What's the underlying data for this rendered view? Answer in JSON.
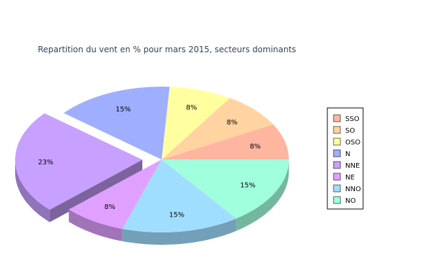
{
  "chart_data": {
    "type": "pie",
    "title": "Repartition du vent en % pour mars 2015, secteurs dominants",
    "categories": [
      "SSO",
      "SO",
      "OSO",
      "N",
      "NNE",
      "NE",
      "NNO",
      "NO"
    ],
    "values": [
      8,
      8,
      8,
      15,
      23,
      8,
      15,
      15
    ],
    "value_labels": [
      "8%",
      "8%",
      "8%",
      "15%",
      "23%",
      "8%",
      "15%",
      "15%"
    ],
    "colors": [
      "#FFB6A0",
      "#FFD4A0",
      "#FFFFA0",
      "#A0AEFF",
      "#C8A0FF",
      "#E0A0FF",
      "#A0DEFF",
      "#A0FFDC"
    ],
    "exploded": "NNE",
    "legend_position": "right",
    "style": "3d"
  }
}
